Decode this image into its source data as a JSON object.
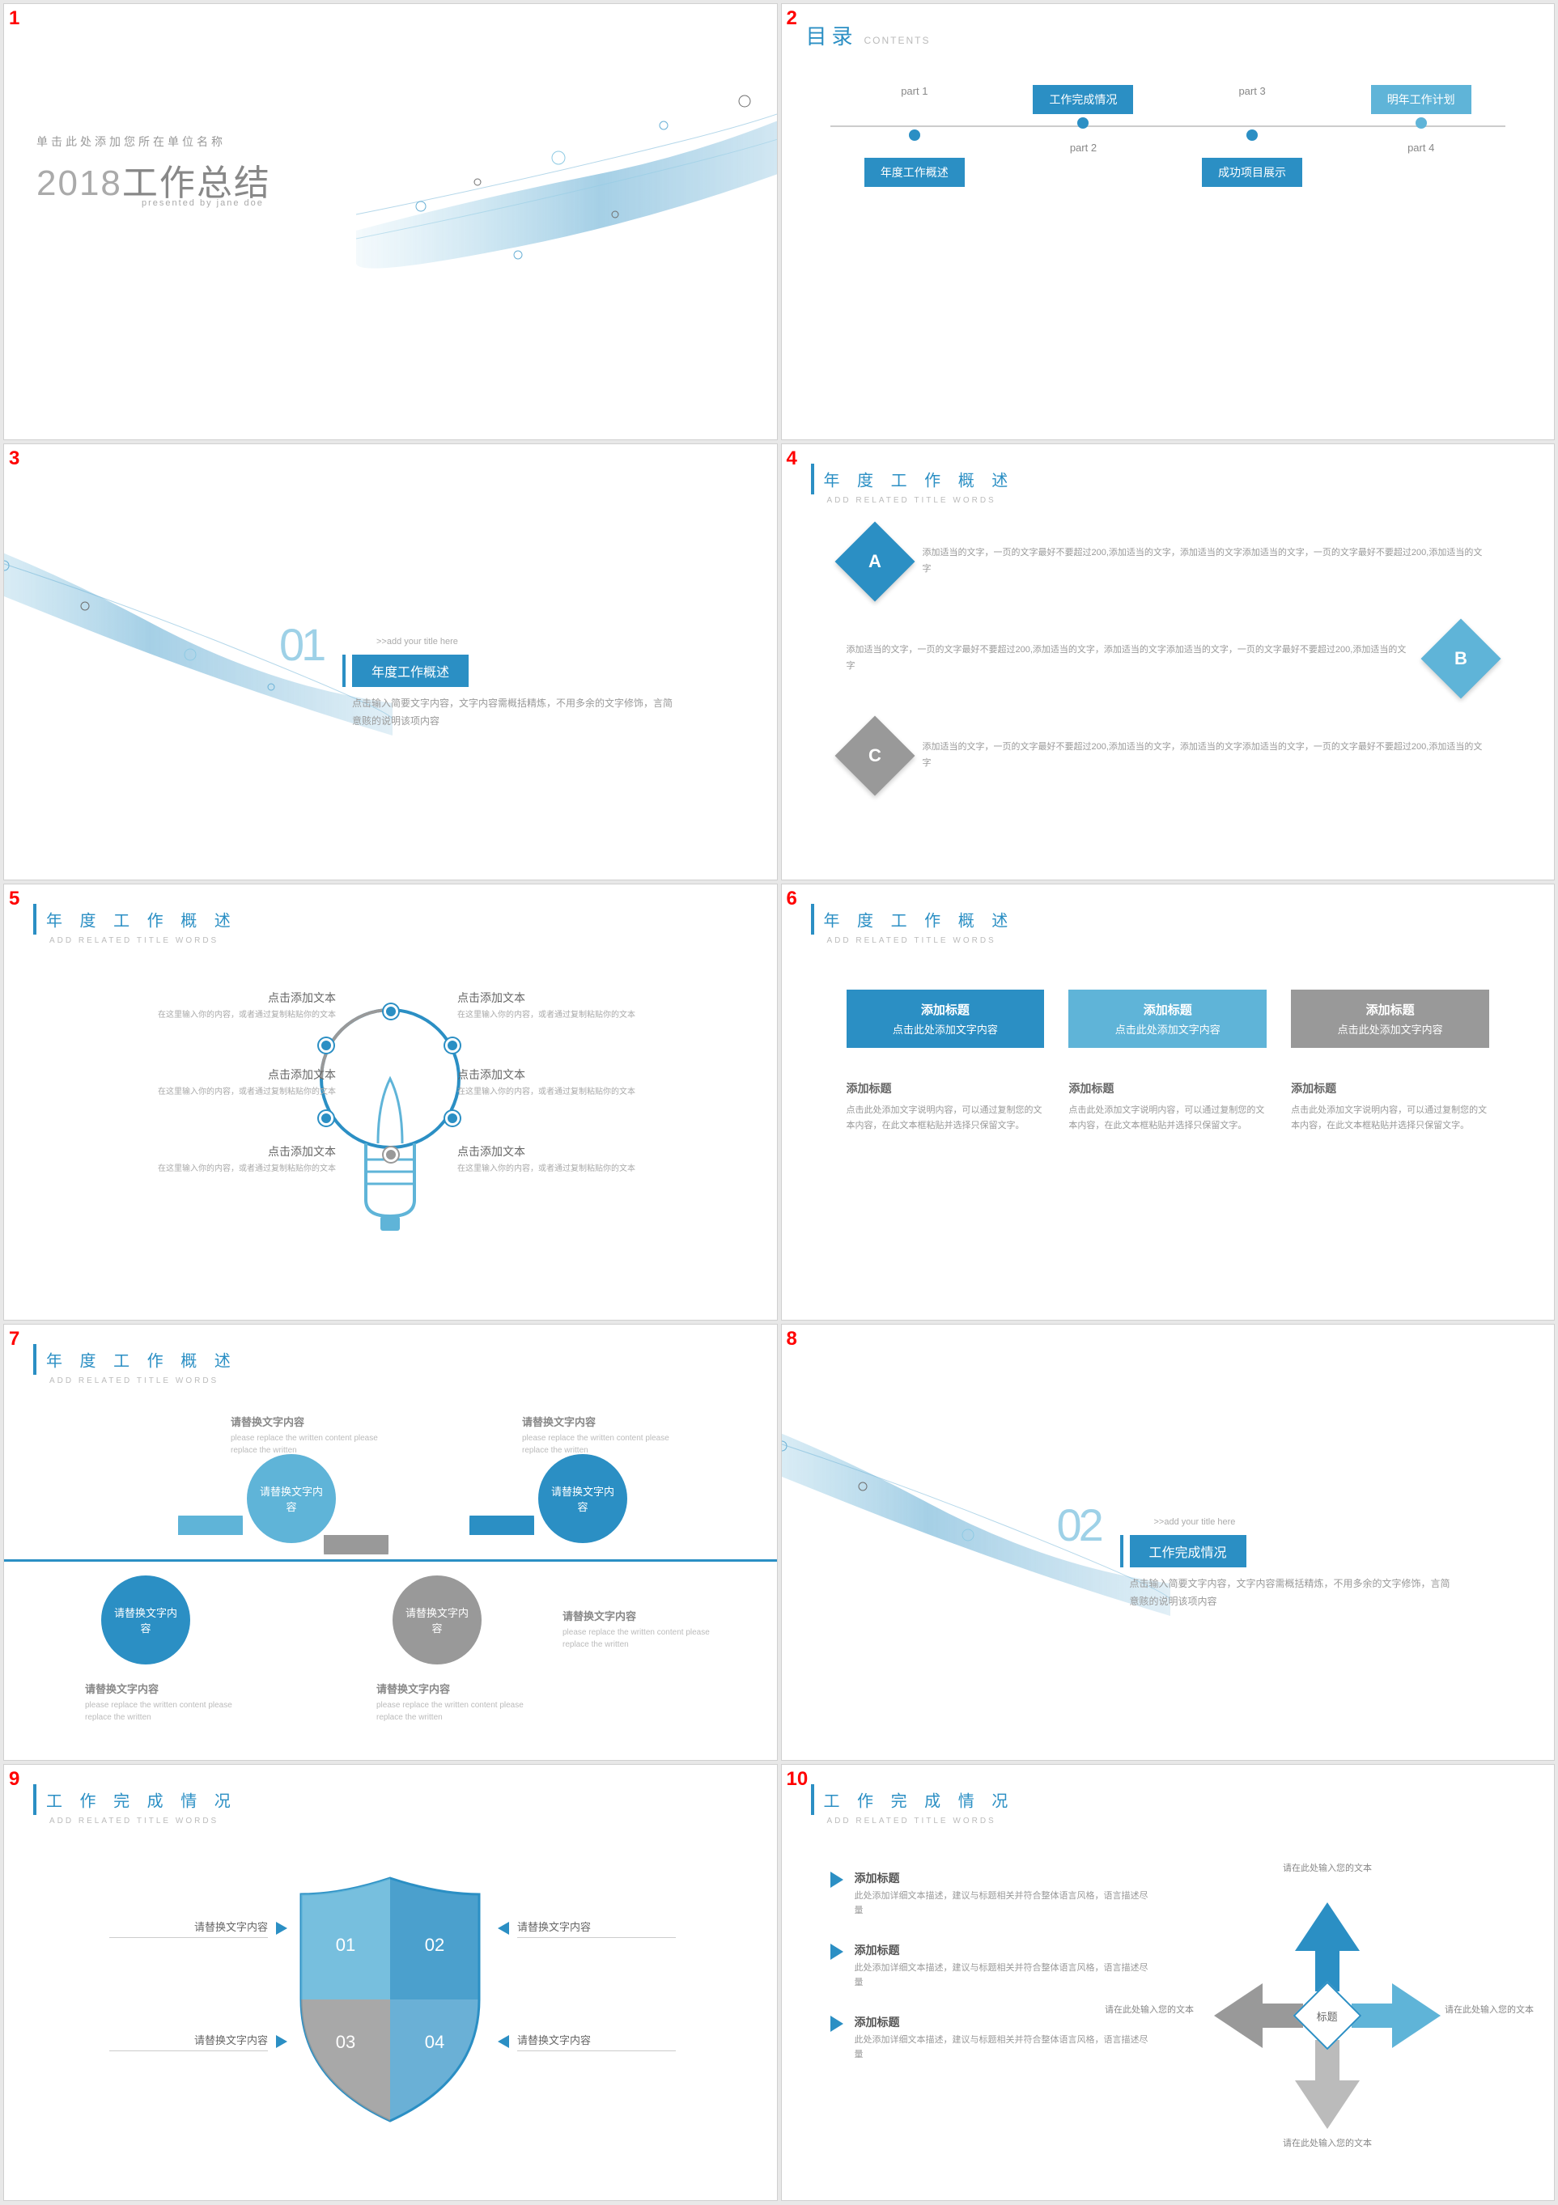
{
  "colors": {
    "primary": "#2b8fc4",
    "primary_light": "#5fb4d8",
    "gray": "#999999",
    "gray_dark": "#888888",
    "red_num": "#ff0000"
  },
  "slide1": {
    "subtitle": "单击此处添加您所在单位名称",
    "year": "2018",
    "title_rest": "工作总结",
    "presented": "presented by jane doe"
  },
  "slide2": {
    "heading": "目录",
    "heading_en": "CONTENTS",
    "parts": [
      {
        "label": "part 1",
        "title": "年度工作概述",
        "pos": "below",
        "color": "#2b8fc4"
      },
      {
        "label": "part 2",
        "title": "工作完成情况",
        "pos": "above",
        "color": "#2b8fc4"
      },
      {
        "label": "part 3",
        "title": "成功项目展示",
        "pos": "below",
        "color": "#2b8fc4"
      },
      {
        "label": "part 4",
        "title": "明年工作计划",
        "pos": "above",
        "color": "#5fb4d8"
      }
    ]
  },
  "section_hint": ">>add your title here",
  "section_desc": "点击输入简要文字内容，文字内容需概括精炼，不用多余的文字修饰，言简意赅的说明该项内容",
  "slide3": {
    "num": "01",
    "title": "年度工作概述"
  },
  "content_header": {
    "title": "年 度 工 作 概 述",
    "sub": "ADD RELATED TITLE WORDS"
  },
  "content_header2": {
    "title": "工 作 完 成 情 况",
    "sub": "ADD RELATED TITLE WORDS"
  },
  "slide4": {
    "items": [
      {
        "letter": "A",
        "color": "#2b8fc4",
        "text": "添加适当的文字，一页的文字最好不要超过200,添加适当的文字，添加适当的文字添加适当的文字，一页的文字最好不要超过200,添加适当的文字"
      },
      {
        "letter": "B",
        "color": "#5fb4d8",
        "text": "添加适当的文字，一页的文字最好不要超过200,添加适当的文字，添加适当的文字添加适当的文字，一页的文字最好不要超过200,添加适当的文字"
      },
      {
        "letter": "C",
        "color": "#999999",
        "text": "添加适当的文字，一页的文字最好不要超过200,添加适当的文字，添加适当的文字添加适当的文字，一页的文字最好不要超过200,添加适当的文字"
      }
    ]
  },
  "slide5": {
    "item_title": "点击添加文本",
    "item_desc": "在这里输入你的内容，或者通过复制粘贴你的文本"
  },
  "slide6": {
    "cards": [
      {
        "top_title": "添加标题",
        "top_sub": "点击此处添加文字内容",
        "color": "#2b8fc4",
        "bot_title": "添加标题",
        "bot_desc": "点击此处添加文字说明内容，可以通过复制您的文本内容，在此文本框粘贴并选择只保留文字。"
      },
      {
        "top_title": "添加标题",
        "top_sub": "点击此处添加文字内容",
        "color": "#5fb4d8",
        "bot_title": "添加标题",
        "bot_desc": "点击此处添加文字说明内容，可以通过复制您的文本内容，在此文本框粘贴并选择只保留文字。"
      },
      {
        "top_title": "添加标题",
        "top_sub": "点击此处添加文字内容",
        "color": "#999999",
        "bot_title": "添加标题",
        "bot_desc": "点击此处添加文字说明内容，可以通过复制您的文本内容，在此文本框粘贴并选择只保留文字。"
      }
    ]
  },
  "slide7": {
    "circle_text": "请替换文字内容",
    "label_title": "请替换文字内容",
    "label_desc": "please replace the written content please replace the written"
  },
  "slide8": {
    "num": "02",
    "title": "工作完成情况"
  },
  "slide9": {
    "item_text": "请替换文字内容",
    "nums": [
      "01",
      "02",
      "03",
      "04"
    ]
  },
  "slide10": {
    "list": [
      {
        "title": "添加标题",
        "desc": "此处添加详细文本描述，建议与标题相关并符合整体语言风格，语言描述尽量"
      },
      {
        "title": "添加标题",
        "desc": "此处添加详细文本描述，建议与标题相关并符合整体语言风格，语言描述尽量"
      },
      {
        "title": "添加标题",
        "desc": "此处添加详细文本描述，建议与标题相关并符合整体语言风格，语言描述尽量"
      }
    ],
    "center": "标题",
    "arrow_label": "请在此处输入您的文本",
    "arrow_colors": [
      "#2b8fc4",
      "#5fb4d8",
      "#999999",
      "#bbbbbb"
    ]
  }
}
